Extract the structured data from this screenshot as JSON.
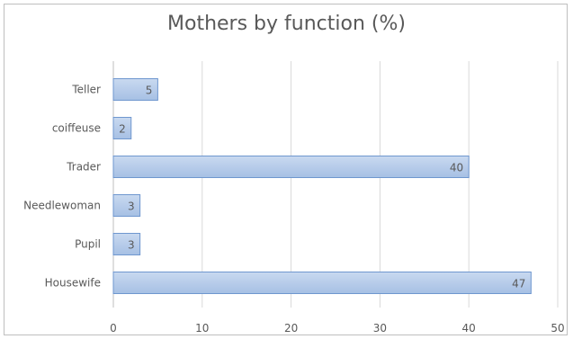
{
  "chart_data": {
    "type": "bar",
    "orientation": "horizontal",
    "title": "Mothers by function (%)",
    "categories": [
      "Teller",
      "coiffeuse",
      "Trader",
      "Needlewoman",
      "Pupil",
      "Housewife"
    ],
    "values": [
      5,
      2,
      40,
      3,
      3,
      47
    ],
    "data_labels": [
      "5",
      "2",
      "40",
      "3",
      "3",
      "47"
    ],
    "x_ticks": [
      "0",
      "10",
      "20",
      "30",
      "40",
      "50"
    ],
    "xlim": [
      0,
      50
    ],
    "xlabel": "",
    "ylabel": "",
    "grid": true,
    "legend": "none",
    "colors": {
      "bar_fill": "#a6c0e4",
      "bar_fill_light": "#c9d9f0",
      "bar_stroke": "#6f97cf",
      "gridline": "#d9d9d9",
      "axis": "#bfbfbf",
      "text": "#595959"
    }
  }
}
